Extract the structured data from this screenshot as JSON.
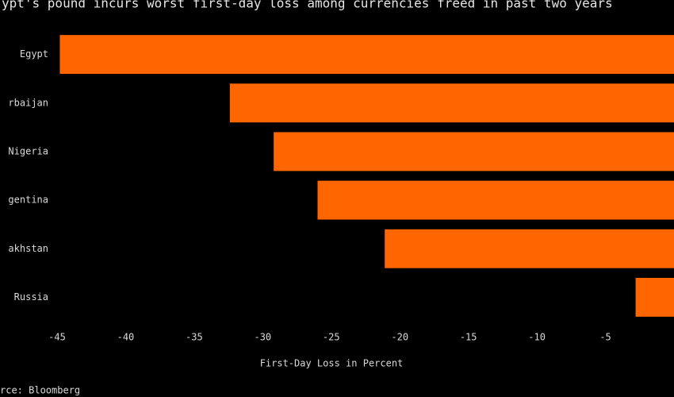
{
  "chart_data": {
    "type": "bar",
    "title": "ypt's pound incurs worst first-day loss among currencies freed in past two years",
    "categories": [
      "Egypt",
      "rbaijan",
      "Nigeria",
      "gentina",
      "akhstan",
      "Russia"
    ],
    "values": [
      -44.8,
      -32.4,
      -29.2,
      -26.0,
      -21.1,
      -2.8
    ],
    "color": "#ff6600",
    "xlim": [
      -45,
      0
    ],
    "xticks": [
      -45,
      -40,
      -35,
      -30,
      -25,
      -20,
      -15,
      -10,
      -5
    ],
    "xlabel": "First-Day Loss in Percent",
    "source": "rce: Bloomberg",
    "grid": false
  }
}
